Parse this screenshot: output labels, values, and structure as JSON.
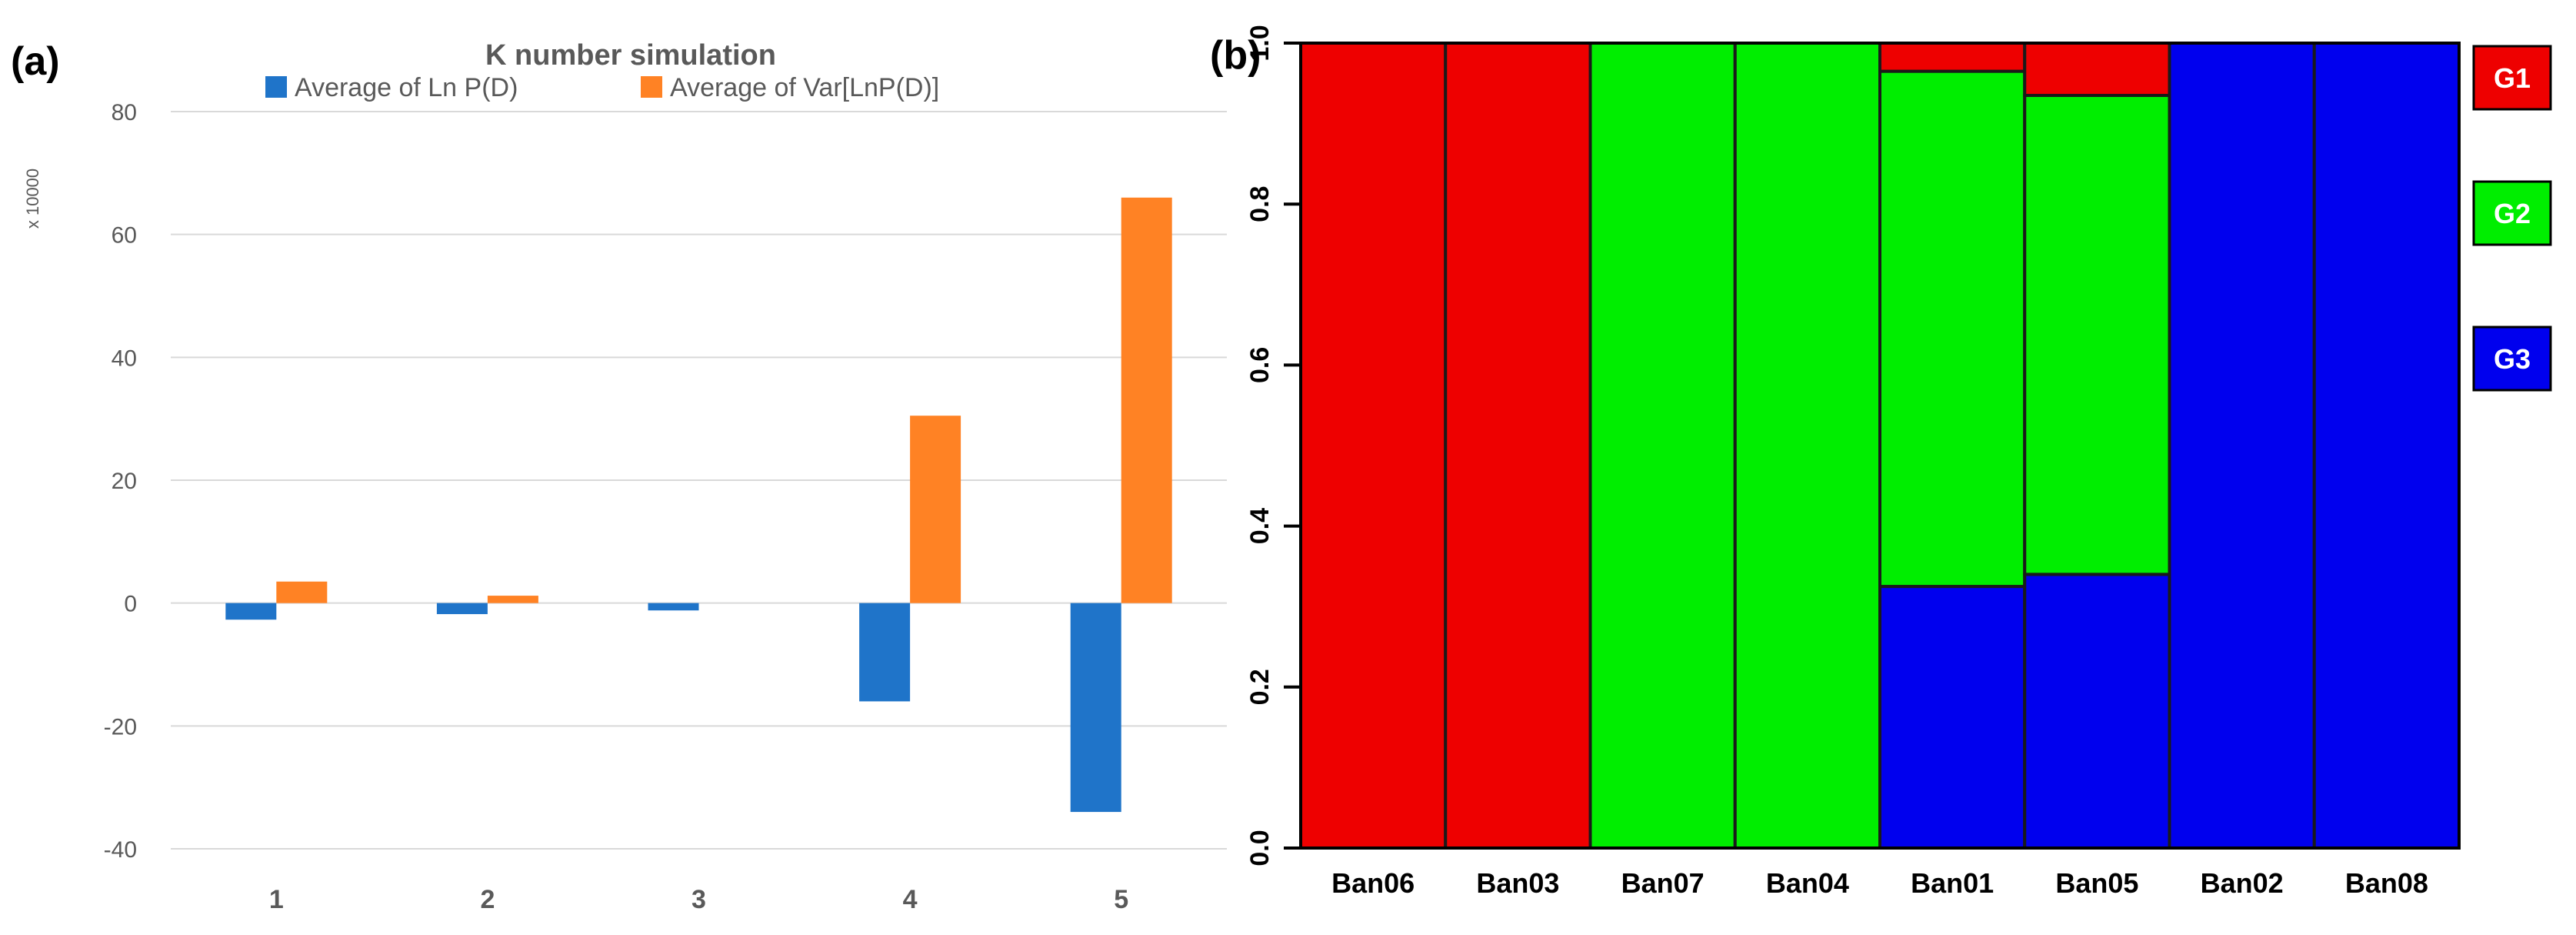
{
  "panels": {
    "a_label": "(a)",
    "b_label": "(b)"
  },
  "chart_data": [
    {
      "type": "bar",
      "title": "K number simulation",
      "scale_label": "x 10000",
      "categories": [
        "1",
        "2",
        "3",
        "4",
        "5"
      ],
      "ylim": [
        -40,
        80
      ],
      "yticks": [
        -40,
        -20,
        0,
        20,
        40,
        60,
        80
      ],
      "grid": true,
      "legend_position": "top",
      "series": [
        {
          "name": "Average of Ln P(D)",
          "color": "#1f74c9",
          "values": [
            -2.7,
            -1.8,
            -1.2,
            -16,
            -34
          ]
        },
        {
          "name": "Average of Var[LnP(D)]",
          "color": "#ff8224",
          "values": [
            3.5,
            1.2,
            0,
            30.5,
            66
          ]
        }
      ]
    },
    {
      "type": "bar",
      "stacked": true,
      "categories": [
        "Ban06",
        "Ban03",
        "Ban07",
        "Ban04",
        "Ban01",
        "Ban05",
        "Ban02",
        "Ban08"
      ],
      "ylim": [
        0,
        1
      ],
      "yticks": [
        "0.0",
        "0.2",
        "0.4",
        "0.6",
        "0.8",
        "1.0"
      ],
      "legend_position": "right",
      "series": [
        {
          "name": "G3",
          "color": "#0000ee",
          "values": [
            0,
            0,
            0,
            0,
            0.325,
            0.34,
            1,
            1
          ]
        },
        {
          "name": "G2",
          "color": "#00ee00",
          "values": [
            0,
            0,
            1,
            1,
            0.64,
            0.595,
            0,
            0
          ]
        },
        {
          "name": "G1",
          "color": "#ee0000",
          "values": [
            1,
            1,
            0,
            0,
            0.035,
            0.065,
            0,
            0
          ]
        }
      ],
      "legend_order": [
        "G1",
        "G2",
        "G3"
      ]
    }
  ]
}
